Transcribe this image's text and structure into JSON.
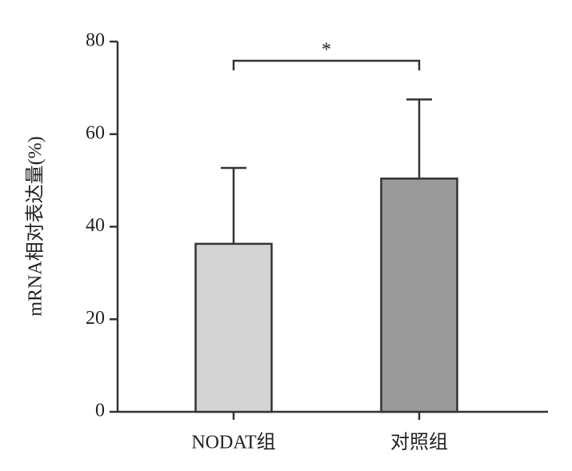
{
  "chart_data": {
    "type": "bar",
    "ylabel": "mRNA相对表达量(%)",
    "categories": [
      "NODAT组",
      "对照组"
    ],
    "values": [
      36.3,
      50.4
    ],
    "errors": [
      16.4,
      17.1
    ],
    "colors": [
      "#d4d4d4",
      "#9a9a9a"
    ],
    "ylim": [
      0,
      80
    ],
    "yticks": [
      0,
      20,
      40,
      60,
      80
    ],
    "annotation": "*"
  }
}
